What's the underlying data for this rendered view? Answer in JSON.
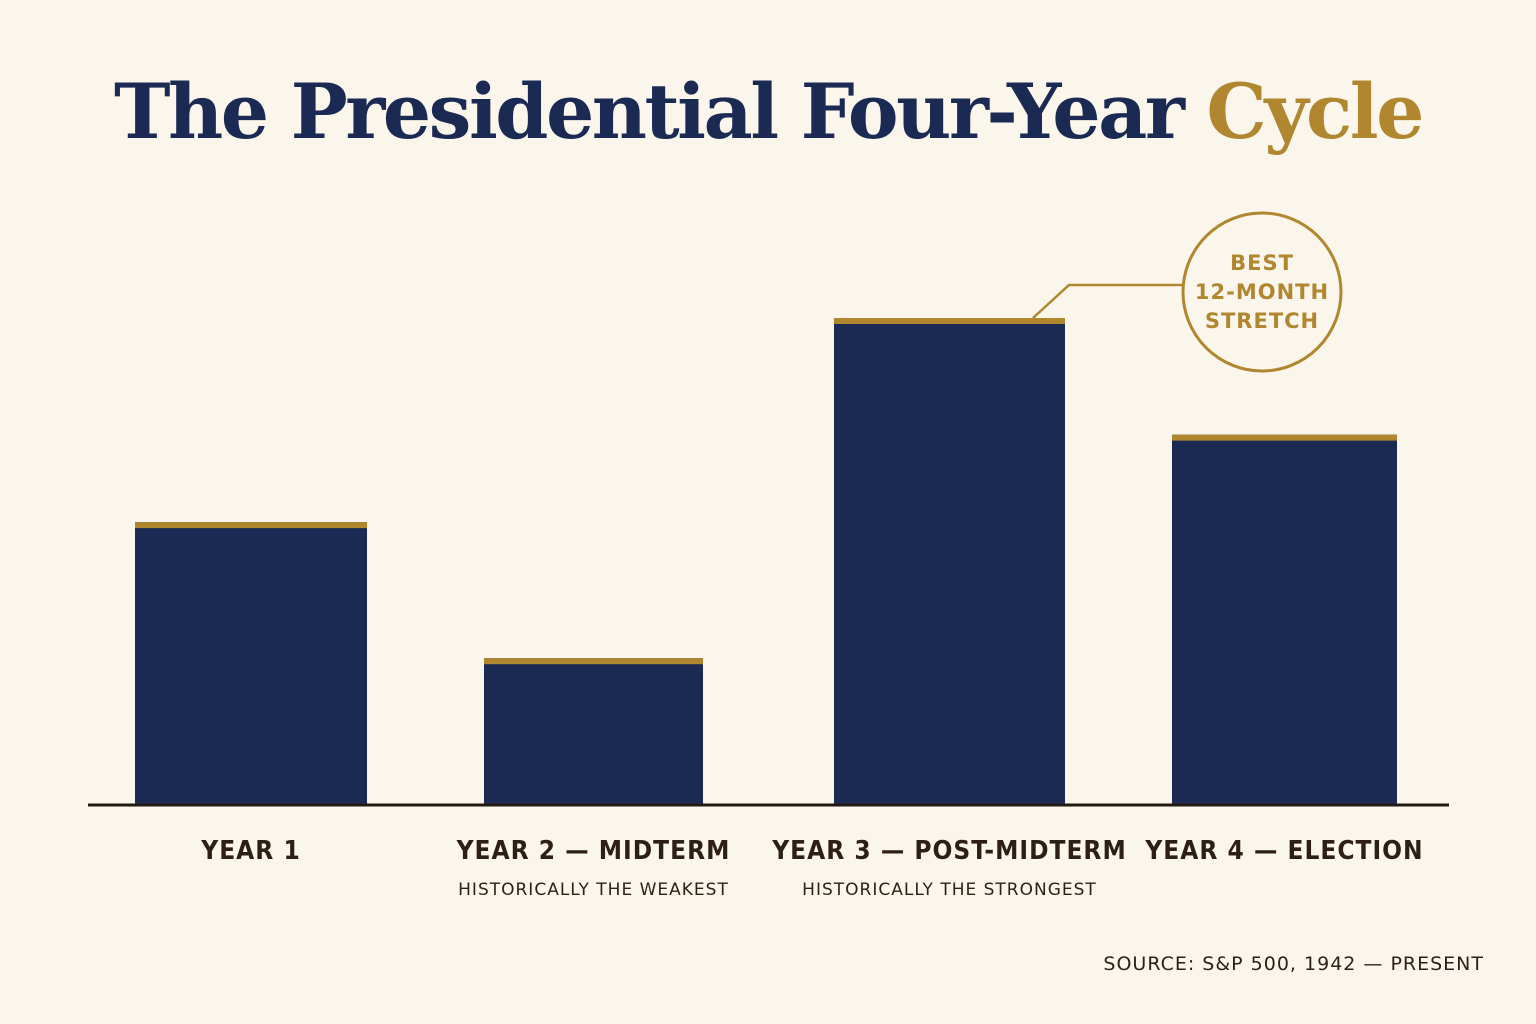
{
  "title": {
    "main": "The Presidential Four-Year ",
    "accent": "Cycle"
  },
  "colors": {
    "background": "#fbf6ec",
    "bar": "#1a2a52",
    "accent": "#b0862f",
    "text": "#2d1f14"
  },
  "chart_data": {
    "type": "bar",
    "categories": [
      "YEAR 1",
      "YEAR 2 — MIDTERM",
      "YEAR 3 — POST-MIDTERM",
      "YEAR 4 — ELECTION"
    ],
    "subtitles": [
      "",
      "HISTORICALLY THE WEAKEST",
      "HISTORICALLY THE STRONGEST",
      ""
    ],
    "values": [
      58,
      30,
      100,
      76
    ],
    "ylim": [
      0,
      100
    ],
    "grid": false,
    "annotation": {
      "category_index": 2,
      "lines": [
        "BEST",
        "12-MONTH",
        "STRETCH"
      ]
    }
  },
  "source": "SOURCE: S&P 500, 1942 — PRESENT"
}
